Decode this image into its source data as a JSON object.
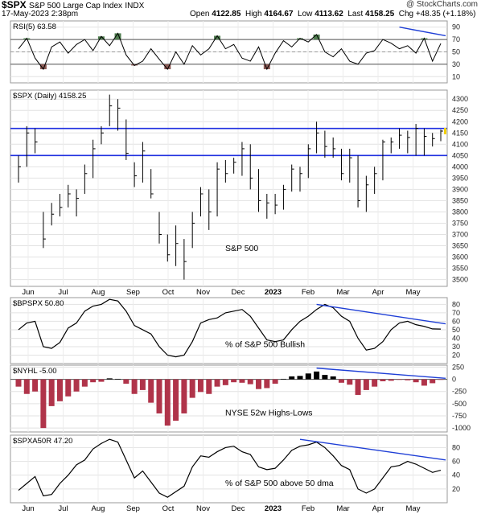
{
  "header": {
    "symbol": "$SPX",
    "name": "S&P 500 Large Cap Index",
    "exchange": "INDX",
    "brand": "@ StockCharts.com",
    "date": "17-May-2023 2:38pm",
    "open_label": "Open",
    "open": "4122.85",
    "high_label": "High",
    "high": "4164.67",
    "low_label": "Low",
    "low": "4113.62",
    "last_label": "Last",
    "last": "4158.25",
    "chg_label": "Chg",
    "chg": "+48.35 (+1.18%)"
  },
  "chart_data": [
    {
      "type": "line",
      "panel_label": "RSI(5) 63.58",
      "y_ticks": [
        10,
        30,
        50,
        70,
        90
      ],
      "ylim": [
        0,
        100
      ],
      "reference_lines": [
        30,
        50,
        70
      ],
      "fill_above": 70,
      "fill_below": 30,
      "colors": {
        "overbought": "#4f7d4f",
        "oversold": "#8b5a55",
        "trend": "#1f3fd6"
      },
      "x": [
        "May-25",
        "Jun-01",
        "Jun-08",
        "Jun-15",
        "Jun-22",
        "Jun-29",
        "Jul-07",
        "Jul-14",
        "Jul-21",
        "Jul-28",
        "Aug-04",
        "Aug-11",
        "Aug-18",
        "Aug-25",
        "Sep-01",
        "Sep-09",
        "Sep-16",
        "Sep-23",
        "Sep-30",
        "Oct-07",
        "Oct-14",
        "Oct-21",
        "Oct-28",
        "Nov-04",
        "Nov-11",
        "Nov-18",
        "Nov-25",
        "Dec-02",
        "Dec-09",
        "Dec-16",
        "Dec-23",
        "Dec-30",
        "Jan-06",
        "Jan-13",
        "Jan-20",
        "Jan-27",
        "Feb-03",
        "Feb-10",
        "Feb-17",
        "Feb-24",
        "Mar-03",
        "Mar-10",
        "Mar-17",
        "Mar-24",
        "Mar-31",
        "Apr-07",
        "Apr-14",
        "Apr-21",
        "Apr-28",
        "May-05",
        "May-12",
        "May-17"
      ],
      "values": [
        55,
        72,
        40,
        22,
        58,
        66,
        48,
        62,
        70,
        52,
        75,
        60,
        80,
        45,
        28,
        35,
        55,
        38,
        22,
        50,
        30,
        60,
        45,
        55,
        76,
        55,
        62,
        40,
        35,
        58,
        22,
        48,
        68,
        58,
        72,
        66,
        78,
        50,
        42,
        55,
        35,
        30,
        48,
        52,
        70,
        64,
        55,
        60,
        48,
        72,
        35,
        63.58
      ]
    },
    {
      "type": "bar",
      "panel_label": "$SPX (Daily) 4158.25",
      "y_ticks": [
        3500,
        3550,
        3600,
        3650,
        3700,
        3750,
        3800,
        3850,
        3900,
        3950,
        4000,
        4050,
        4100,
        4150,
        4200,
        4250,
        4300
      ],
      "ylim": [
        3470,
        4340
      ],
      "horizontal_lines": [
        4050,
        4170
      ],
      "annotation": "S&P 500",
      "x_labels": [
        "Jun",
        "Jul",
        "Aug",
        "Sep",
        "Oct",
        "Nov",
        "Dec",
        "2023",
        "Feb",
        "Mar",
        "Apr",
        "May"
      ],
      "x": [
        "May-25",
        "Jun-01",
        "Jun-08",
        "Jun-15",
        "Jun-22",
        "Jun-29",
        "Jul-07",
        "Jul-14",
        "Jul-21",
        "Jul-28",
        "Aug-04",
        "Aug-11",
        "Aug-18",
        "Aug-25",
        "Sep-01",
        "Sep-09",
        "Sep-16",
        "Sep-23",
        "Sep-30",
        "Oct-07",
        "Oct-14",
        "Oct-21",
        "Oct-28",
        "Nov-04",
        "Nov-11",
        "Nov-18",
        "Nov-25",
        "Dec-02",
        "Dec-09",
        "Dec-16",
        "Dec-23",
        "Dec-30",
        "Jan-06",
        "Jan-13",
        "Jan-20",
        "Jan-27",
        "Feb-03",
        "Feb-10",
        "Feb-17",
        "Feb-24",
        "Mar-03",
        "Mar-10",
        "Mar-17",
        "Mar-24",
        "Mar-31",
        "Apr-07",
        "Apr-14",
        "Apr-21",
        "Apr-28",
        "May-05",
        "May-12",
        "May-17"
      ],
      "close": [
        4000,
        4150,
        4110,
        3680,
        3790,
        3820,
        3880,
        3860,
        3970,
        4080,
        4150,
        4270,
        4260,
        4060,
        3960,
        4070,
        3880,
        3700,
        3610,
        3660,
        3580,
        3750,
        3880,
        3800,
        3990,
        3970,
        4020,
        4080,
        3950,
        3850,
        3840,
        3830,
        3900,
        3990,
        3970,
        4080,
        4150,
        4090,
        4080,
        3970,
        4040,
        3850,
        3920,
        3970,
        4110,
        4110,
        4140,
        4130,
        4170,
        4135,
        4125,
        4158.25
      ],
      "high": [
        4050,
        4180,
        4170,
        3800,
        3840,
        3880,
        3920,
        3900,
        4010,
        4120,
        4180,
        4320,
        4300,
        4210,
        4020,
        4110,
        3990,
        3800,
        3700,
        3740,
        3680,
        3800,
        3910,
        3900,
        4020,
        4030,
        4040,
        4110,
        4100,
        3990,
        3880,
        3880,
        3920,
        4010,
        4000,
        4100,
        4200,
        4160,
        4130,
        4080,
        4080,
        4050,
        3960,
        4000,
        4120,
        4130,
        4170,
        4160,
        4190,
        4170,
        4150,
        4164.67
      ],
      "low": [
        3930,
        4000,
        4060,
        3640,
        3740,
        3780,
        3820,
        3780,
        3880,
        3950,
        4100,
        4180,
        4160,
        4030,
        3910,
        3930,
        3860,
        3660,
        3580,
        3560,
        3500,
        3640,
        3780,
        3720,
        3780,
        3930,
        3970,
        3960,
        3900,
        3800,
        3770,
        3790,
        3810,
        3890,
        3890,
        3950,
        4060,
        4040,
        4040,
        3940,
        3930,
        3820,
        3800,
        3880,
        3940,
        4060,
        4080,
        4060,
        4050,
        4050,
        4090,
        4113.62
      ]
    },
    {
      "type": "line",
      "panel_label": "$BPSPX 50.80",
      "annotation": "% of S&P 500 Bullish",
      "y_ticks": [
        20,
        30,
        40,
        50,
        60,
        70,
        80
      ],
      "ylim": [
        10,
        88
      ],
      "x": [
        "May-25",
        "Jun-01",
        "Jun-08",
        "Jun-15",
        "Jun-22",
        "Jun-29",
        "Jul-07",
        "Jul-14",
        "Jul-21",
        "Jul-28",
        "Aug-04",
        "Aug-11",
        "Aug-18",
        "Aug-25",
        "Sep-01",
        "Sep-09",
        "Sep-16",
        "Sep-23",
        "Sep-30",
        "Oct-07",
        "Oct-14",
        "Oct-21",
        "Oct-28",
        "Nov-04",
        "Nov-11",
        "Nov-18",
        "Nov-25",
        "Dec-02",
        "Dec-09",
        "Dec-16",
        "Dec-23",
        "Dec-30",
        "Jan-06",
        "Jan-13",
        "Jan-20",
        "Jan-27",
        "Feb-03",
        "Feb-10",
        "Feb-17",
        "Feb-24",
        "Mar-03",
        "Mar-10",
        "Mar-17",
        "Mar-24",
        "Mar-31",
        "Apr-07",
        "Apr-14",
        "Apr-21",
        "Apr-28",
        "May-05",
        "May-12",
        "May-17"
      ],
      "values": [
        50,
        58,
        60,
        30,
        28,
        35,
        52,
        58,
        72,
        78,
        80,
        86,
        84,
        72,
        55,
        50,
        45,
        30,
        20,
        18,
        20,
        36,
        58,
        62,
        64,
        70,
        72,
        74,
        66,
        52,
        38,
        36,
        38,
        50,
        60,
        66,
        74,
        80,
        76,
        66,
        60,
        40,
        26,
        28,
        36,
        50,
        58,
        60,
        56,
        54,
        51,
        50.8
      ]
    },
    {
      "type": "bar",
      "panel_label": "$NYHL -5.00",
      "annotation": "NYSE 52w Highs-Lows",
      "y_ticks": [
        250,
        0,
        -250,
        -500,
        -750,
        -1000
      ],
      "ylim": [
        -1080,
        290
      ],
      "colors": {
        "positive": "#000000",
        "negative": "#b0344a"
      },
      "x": [
        "May-25",
        "Jun-01",
        "Jun-08",
        "Jun-15",
        "Jun-22",
        "Jun-29",
        "Jul-07",
        "Jul-14",
        "Jul-21",
        "Jul-28",
        "Aug-04",
        "Aug-11",
        "Aug-18",
        "Aug-25",
        "Sep-01",
        "Sep-09",
        "Sep-16",
        "Sep-23",
        "Sep-30",
        "Oct-07",
        "Oct-14",
        "Oct-21",
        "Oct-28",
        "Nov-04",
        "Nov-11",
        "Nov-18",
        "Nov-25",
        "Dec-02",
        "Dec-09",
        "Dec-16",
        "Dec-23",
        "Dec-30",
        "Jan-06",
        "Jan-13",
        "Jan-20",
        "Jan-27",
        "Feb-03",
        "Feb-10",
        "Feb-17",
        "Feb-24",
        "Mar-03",
        "Mar-10",
        "Mar-17",
        "Mar-24",
        "Mar-31",
        "Apr-07",
        "Apr-14",
        "Apr-21",
        "Apr-28",
        "May-05",
        "May-12",
        "May-17"
      ],
      "values": [
        -150,
        -300,
        -250,
        -1000,
        -550,
        -450,
        -350,
        -250,
        -150,
        -60,
        -50,
        20,
        10,
        -90,
        -300,
        -220,
        -480,
        -700,
        -950,
        -850,
        -700,
        -380,
        -260,
        -300,
        -150,
        -120,
        -60,
        -70,
        -100,
        -200,
        -180,
        -90,
        10,
        60,
        70,
        120,
        160,
        90,
        60,
        -70,
        -110,
        -320,
        -220,
        -150,
        -40,
        -30,
        -10,
        -20,
        -60,
        -130,
        -80,
        -5
      ]
    },
    {
      "type": "line",
      "panel_label": "$SPXA50R 47.20",
      "annotation": "% of S&P 500 above 50 dma",
      "y_ticks": [
        20,
        40,
        60,
        80
      ],
      "ylim": [
        0,
        98
      ],
      "x_labels": [
        "Jun",
        "Jul",
        "Aug",
        "Sep",
        "Oct",
        "Nov",
        "Dec",
        "2023",
        "Feb",
        "Mar",
        "Apr",
        "May"
      ],
      "x": [
        "May-25",
        "Jun-01",
        "Jun-08",
        "Jun-15",
        "Jun-22",
        "Jun-29",
        "Jul-07",
        "Jul-14",
        "Jul-21",
        "Jul-28",
        "Aug-04",
        "Aug-11",
        "Aug-18",
        "Aug-25",
        "Sep-01",
        "Sep-09",
        "Sep-16",
        "Sep-23",
        "Sep-30",
        "Oct-07",
        "Oct-14",
        "Oct-21",
        "Oct-28",
        "Nov-04",
        "Nov-11",
        "Nov-18",
        "Nov-25",
        "Dec-02",
        "Dec-09",
        "Dec-16",
        "Dec-23",
        "Dec-30",
        "Jan-06",
        "Jan-13",
        "Jan-20",
        "Jan-27",
        "Feb-03",
        "Feb-10",
        "Feb-17",
        "Feb-24",
        "Mar-03",
        "Mar-10",
        "Mar-17",
        "Mar-24",
        "Mar-31",
        "Apr-07",
        "Apr-14",
        "Apr-21",
        "Apr-28",
        "May-05",
        "May-12",
        "May-17"
      ],
      "values": [
        18,
        28,
        38,
        10,
        12,
        28,
        40,
        55,
        62,
        78,
        86,
        92,
        88,
        62,
        36,
        46,
        30,
        14,
        8,
        16,
        24,
        52,
        68,
        66,
        74,
        80,
        82,
        74,
        70,
        52,
        48,
        50,
        62,
        76,
        82,
        84,
        88,
        80,
        68,
        54,
        48,
        20,
        14,
        20,
        36,
        52,
        54,
        60,
        56,
        50,
        44,
        47.2
      ]
    }
  ]
}
